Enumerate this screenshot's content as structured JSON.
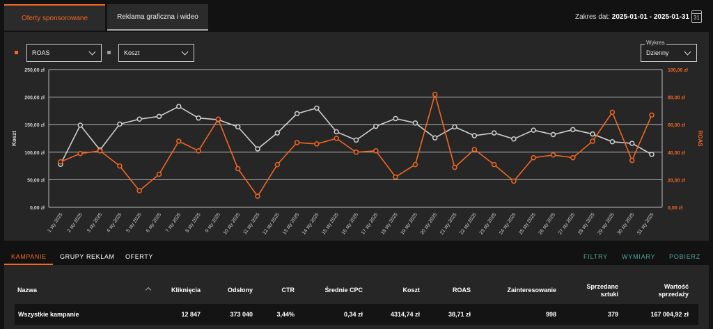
{
  "top_tabs": {
    "sponsored": "Oferty sponsorowane",
    "display": "Reklama graficzna i wideo"
  },
  "date_range": {
    "label": "Zakres dat:",
    "value": "2025-01-01 - 2025-01-31",
    "icon": "calendar-icon",
    "day": "31"
  },
  "controls": {
    "metric1": "ROAS",
    "metric2": "Koszt",
    "chart_mode_label": "Wykres",
    "chart_mode": "Dzienny"
  },
  "colors": {
    "orange": "#f26722",
    "gray": "#cfcfcf",
    "accent": "#f26722",
    "teal": "#4fa59a"
  },
  "chart_data": {
    "type": "line",
    "left_axis_label": "Koszt",
    "right_axis_label": "ROAS",
    "left_ylim": [
      0,
      250
    ],
    "right_ylim": [
      0,
      100
    ],
    "left_ticks": [
      "0,00 zł",
      "50,00 zł",
      "100,00 zł",
      "150,00 zł",
      "200,00 zł",
      "250,00 zł"
    ],
    "right_ticks": [
      "0,00 zł",
      "20,00 zł",
      "40,00 zł",
      "60,00 zł",
      "80,00 zł",
      "100,00 zł"
    ],
    "categories": [
      "1 sty 2025",
      "2 sty 2025",
      "3 sty 2025",
      "4 sty 2025",
      "5 sty 2025",
      "6 sty 2025",
      "7 sty 2025",
      "8 sty 2025",
      "9 sty 2025",
      "10 sty 2025",
      "11 sty 2025",
      "12 sty 2025",
      "13 sty 2025",
      "14 sty 2025",
      "15 sty 2025",
      "16 sty 2025",
      "17 sty 2025",
      "18 sty 2025",
      "19 sty 2025",
      "20 sty 2025",
      "21 sty 2025",
      "22 sty 2025",
      "23 sty 2025",
      "24 sty 2025",
      "25 sty 2025",
      "26 sty 2025",
      "27 sty 2025",
      "28 sty 2025",
      "29 sty 2025",
      "30 sty 2025",
      "31 sty 2025"
    ],
    "series": [
      {
        "name": "Koszt",
        "axis": "left",
        "color": "#cfcfcf",
        "values": [
          78,
          149,
          104,
          151,
          160,
          165,
          183,
          162,
          159,
          146,
          106,
          135,
          170,
          180,
          137,
          122,
          147,
          161,
          153,
          126,
          146,
          130,
          135,
          124,
          140,
          132,
          141,
          133,
          119,
          116,
          96
        ]
      },
      {
        "name": "ROAS",
        "axis": "right",
        "color": "#f26722",
        "values": [
          33,
          39,
          41,
          30,
          12,
          24,
          48,
          41,
          64,
          28,
          8,
          31,
          47,
          46,
          50,
          40,
          41,
          22,
          31,
          82,
          29,
          42,
          31,
          19,
          36,
          38,
          36,
          48,
          69,
          34,
          67
        ]
      }
    ]
  },
  "subtabs": {
    "campaigns": "KAMPANIE",
    "ad_groups": "GRUPY REKLAM",
    "offers": "OFERTY"
  },
  "actions": {
    "filters": "FILTRY",
    "dimensions": "WYMIARY",
    "download": "POBIERZ"
  },
  "table": {
    "headers": {
      "name": "Nazwa",
      "clicks": "Kliknięcia",
      "impressions": "Odsłony",
      "ctr": "CTR",
      "cpc": "Średnie CPC",
      "cost": "Koszt",
      "roas": "ROAS",
      "interest": "Zainteresowanie",
      "sold1": "Sprzedane",
      "sold2": "sztuki",
      "value1": "Wartość",
      "value2": "sprzedaży"
    },
    "rows": [
      {
        "name": "Wszystkie kampanie",
        "clicks": "12 847",
        "impressions": "373 040",
        "ctr": "3,44%",
        "cpc": "0,34 zł",
        "cost": "4314,74 zł",
        "roas": "38,71 zł",
        "interest": "998",
        "sold": "379",
        "value": "167 004,92 zł"
      }
    ]
  }
}
